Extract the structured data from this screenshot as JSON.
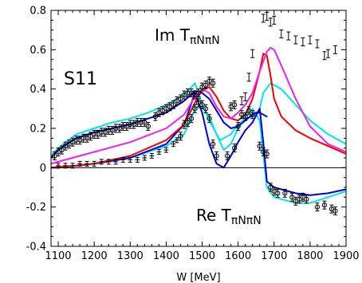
{
  "chart_data": {
    "type": "line",
    "title": "",
    "xlabel": "W [MeV]",
    "ylabel": "",
    "xlim": [
      1080,
      1900
    ],
    "ylim": [
      -0.4,
      0.8
    ],
    "grid": false,
    "xticks": [
      1100,
      1200,
      1300,
      1400,
      1500,
      1600,
      1700,
      1800,
      1900
    ],
    "yticks": [
      -0.4,
      -0.2,
      0,
      0.2,
      0.4,
      0.6,
      0.8
    ],
    "annotations": {
      "partial_wave": "S11",
      "im_label": {
        "main": "Im T",
        "sub": "πNπN"
      },
      "re_label": {
        "main": "Re T",
        "sub": "πNπN"
      }
    },
    "series": [
      {
        "color": "#00e5e5",
        "part": "im",
        "points": [
          [
            1080,
            0.06
          ],
          [
            1100,
            0.1
          ],
          [
            1150,
            0.17
          ],
          [
            1200,
            0.2
          ],
          [
            1250,
            0.23
          ],
          [
            1300,
            0.25
          ],
          [
            1350,
            0.28
          ],
          [
            1400,
            0.32
          ],
          [
            1450,
            0.37
          ],
          [
            1480,
            0.43
          ],
          [
            1490,
            0.38
          ],
          [
            1500,
            0.32
          ],
          [
            1520,
            0.24
          ],
          [
            1540,
            0.17
          ],
          [
            1550,
            0.14
          ],
          [
            1560,
            0.15
          ],
          [
            1580,
            0.17
          ],
          [
            1600,
            0.22
          ],
          [
            1620,
            0.25
          ],
          [
            1640,
            0.26
          ],
          [
            1650,
            0.27
          ],
          [
            1660,
            0.3
          ],
          [
            1670,
            0.38
          ],
          [
            1690,
            0.43
          ],
          [
            1720,
            0.4
          ],
          [
            1760,
            0.32
          ],
          [
            1800,
            0.24
          ],
          [
            1850,
            0.17
          ],
          [
            1900,
            0.12
          ]
        ]
      },
      {
        "color": "#00e5e5",
        "part": "re",
        "points": [
          [
            1080,
            0.0
          ],
          [
            1100,
            0.0
          ],
          [
            1200,
            0.02
          ],
          [
            1300,
            0.05
          ],
          [
            1400,
            0.11
          ],
          [
            1450,
            0.17
          ],
          [
            1480,
            0.3
          ],
          [
            1500,
            0.31
          ],
          [
            1520,
            0.26
          ],
          [
            1540,
            0.17
          ],
          [
            1560,
            0.09
          ],
          [
            1580,
            0.12
          ],
          [
            1600,
            0.2
          ],
          [
            1620,
            0.26
          ],
          [
            1640,
            0.3
          ],
          [
            1660,
            0.24
          ],
          [
            1670,
            0.07
          ],
          [
            1680,
            -0.1
          ],
          [
            1700,
            -0.15
          ],
          [
            1720,
            -0.16
          ],
          [
            1760,
            -0.18
          ],
          [
            1780,
            -0.18
          ],
          [
            1800,
            -0.18
          ],
          [
            1850,
            -0.15
          ],
          [
            1900,
            -0.12
          ]
        ]
      },
      {
        "color": "#0000cc",
        "part": "im",
        "points": [
          [
            1080,
            0.05
          ],
          [
            1100,
            0.09
          ],
          [
            1150,
            0.15
          ],
          [
            1200,
            0.18
          ],
          [
            1250,
            0.2
          ],
          [
            1300,
            0.22
          ],
          [
            1350,
            0.25
          ],
          [
            1400,
            0.28
          ],
          [
            1450,
            0.34
          ],
          [
            1480,
            0.39
          ],
          [
            1500,
            0.38
          ],
          [
            1520,
            0.35
          ],
          [
            1540,
            0.29
          ],
          [
            1560,
            0.23
          ],
          [
            1580,
            0.2
          ],
          [
            1600,
            0.21
          ],
          [
            1620,
            0.24
          ],
          [
            1640,
            0.27
          ],
          [
            1650,
            0.28
          ],
          [
            1660,
            0.28
          ],
          [
            1680,
            0.26
          ]
        ]
      },
      {
        "color": "#0000cc",
        "part": "re",
        "points": [
          [
            1080,
            0.0
          ],
          [
            1100,
            0.0
          ],
          [
            1200,
            0.02
          ],
          [
            1300,
            0.05
          ],
          [
            1400,
            0.12
          ],
          [
            1450,
            0.22
          ],
          [
            1480,
            0.38
          ],
          [
            1500,
            0.28
          ],
          [
            1520,
            0.12
          ],
          [
            1540,
            0.02
          ],
          [
            1560,
            0.0
          ],
          [
            1580,
            0.06
          ],
          [
            1600,
            0.13
          ],
          [
            1620,
            0.19
          ],
          [
            1640,
            0.23
          ],
          [
            1660,
            0.3
          ],
          [
            1670,
            0.13
          ],
          [
            1680,
            -0.07
          ],
          [
            1700,
            -0.1
          ],
          [
            1720,
            -0.11
          ],
          [
            1760,
            -0.13
          ],
          [
            1800,
            -0.14
          ],
          [
            1850,
            -0.13
          ],
          [
            1900,
            -0.11
          ]
        ]
      },
      {
        "color": "#ee0000",
        "part": "im",
        "points": [
          [
            1080,
            0.0
          ],
          [
            1150,
            0.01
          ],
          [
            1200,
            0.02
          ],
          [
            1300,
            0.06
          ],
          [
            1400,
            0.14
          ],
          [
            1450,
            0.22
          ],
          [
            1480,
            0.33
          ],
          [
            1500,
            0.4
          ],
          [
            1520,
            0.41
          ],
          [
            1540,
            0.36
          ],
          [
            1560,
            0.29
          ],
          [
            1580,
            0.25
          ],
          [
            1600,
            0.24
          ],
          [
            1620,
            0.27
          ],
          [
            1640,
            0.35
          ],
          [
            1660,
            0.49
          ],
          [
            1670,
            0.58
          ],
          [
            1680,
            0.57
          ],
          [
            1690,
            0.47
          ],
          [
            1700,
            0.35
          ],
          [
            1720,
            0.26
          ],
          [
            1760,
            0.19
          ],
          [
            1800,
            0.15
          ],
          [
            1850,
            0.11
          ],
          [
            1900,
            0.07
          ]
        ]
      },
      {
        "color": "#ee22ee",
        "part": "im",
        "points": [
          [
            1080,
            0.02
          ],
          [
            1100,
            0.03
          ],
          [
            1200,
            0.08
          ],
          [
            1300,
            0.13
          ],
          [
            1400,
            0.2
          ],
          [
            1450,
            0.27
          ],
          [
            1480,
            0.36
          ],
          [
            1500,
            0.4
          ],
          [
            1520,
            0.38
          ],
          [
            1540,
            0.31
          ],
          [
            1560,
            0.26
          ],
          [
            1580,
            0.25
          ],
          [
            1600,
            0.28
          ],
          [
            1620,
            0.32
          ],
          [
            1640,
            0.38
          ],
          [
            1660,
            0.49
          ],
          [
            1680,
            0.59
          ],
          [
            1690,
            0.61
          ],
          [
            1700,
            0.6
          ],
          [
            1720,
            0.52
          ],
          [
            1760,
            0.35
          ],
          [
            1800,
            0.21
          ],
          [
            1850,
            0.12
          ],
          [
            1900,
            0.08
          ]
        ]
      }
    ],
    "data_im": [
      [
        1090,
        0.06
      ],
      [
        1100,
        0.08
      ],
      [
        1110,
        0.09
      ],
      [
        1120,
        0.11
      ],
      [
        1130,
        0.12
      ],
      [
        1140,
        0.13
      ],
      [
        1150,
        0.14
      ],
      [
        1160,
        0.14
      ],
      [
        1170,
        0.15
      ],
      [
        1180,
        0.15
      ],
      [
        1190,
        0.16
      ],
      [
        1200,
        0.17
      ],
      [
        1210,
        0.17
      ],
      [
        1220,
        0.18
      ],
      [
        1230,
        0.18
      ],
      [
        1240,
        0.19
      ],
      [
        1250,
        0.19
      ],
      [
        1260,
        0.2
      ],
      [
        1270,
        0.2
      ],
      [
        1280,
        0.21
      ],
      [
        1290,
        0.21
      ],
      [
        1300,
        0.22
      ],
      [
        1310,
        0.22
      ],
      [
        1320,
        0.23
      ],
      [
        1330,
        0.23
      ],
      [
        1340,
        0.23
      ],
      [
        1350,
        0.21
      ],
      [
        1370,
        0.26
      ],
      [
        1380,
        0.28
      ],
      [
        1390,
        0.29
      ],
      [
        1400,
        0.3
      ],
      [
        1410,
        0.31
      ],
      [
        1420,
        0.32
      ],
      [
        1430,
        0.34
      ],
      [
        1440,
        0.35
      ],
      [
        1450,
        0.37
      ],
      [
        1460,
        0.38
      ],
      [
        1470,
        0.38
      ],
      [
        1480,
        0.37
      ],
      [
        1490,
        0.38
      ],
      [
        1500,
        0.41
      ],
      [
        1510,
        0.42
      ],
      [
        1520,
        0.44
      ],
      [
        1530,
        0.43
      ],
      [
        1580,
        0.31
      ],
      [
        1590,
        0.32
      ],
      [
        1610,
        0.34
      ],
      [
        1620,
        0.36
      ],
      [
        1630,
        0.46
      ],
      [
        1640,
        0.58
      ],
      [
        1670,
        0.76
      ],
      [
        1680,
        0.77
      ],
      [
        1690,
        0.74
      ],
      [
        1700,
        0.75
      ],
      [
        1720,
        0.68
      ],
      [
        1740,
        0.67
      ],
      [
        1760,
        0.65
      ],
      [
        1780,
        0.64
      ],
      [
        1800,
        0.65
      ],
      [
        1820,
        0.63
      ],
      [
        1840,
        0.57
      ],
      [
        1850,
        0.58
      ],
      [
        1870,
        0.6
      ]
    ],
    "data_re": [
      [
        1100,
        0.01
      ],
      [
        1120,
        0.01
      ],
      [
        1140,
        0.01
      ],
      [
        1160,
        0.02
      ],
      [
        1180,
        0.02
      ],
      [
        1200,
        0.02
      ],
      [
        1220,
        0.03
      ],
      [
        1240,
        0.03
      ],
      [
        1260,
        0.03
      ],
      [
        1280,
        0.04
      ],
      [
        1300,
        0.04
      ],
      [
        1320,
        0.04
      ],
      [
        1340,
        0.05
      ],
      [
        1360,
        0.06
      ],
      [
        1380,
        0.08
      ],
      [
        1400,
        0.09
      ],
      [
        1420,
        0.12
      ],
      [
        1430,
        0.14
      ],
      [
        1440,
        0.16
      ],
      [
        1450,
        0.22
      ],
      [
        1460,
        0.23
      ],
      [
        1470,
        0.25
      ],
      [
        1480,
        0.3
      ],
      [
        1490,
        0.33
      ],
      [
        1500,
        0.32
      ],
      [
        1510,
        0.3
      ],
      [
        1520,
        0.25
      ],
      [
        1530,
        0.12
      ],
      [
        1540,
        0.06
      ],
      [
        1570,
        0.06
      ],
      [
        1590,
        0.1
      ],
      [
        1600,
        0.21
      ],
      [
        1610,
        0.27
      ],
      [
        1620,
        0.26
      ],
      [
        1630,
        0.29
      ],
      [
        1640,
        0.27
      ],
      [
        1660,
        0.11
      ],
      [
        1670,
        0.08
      ],
      [
        1680,
        0.07
      ],
      [
        1690,
        -0.1
      ],
      [
        1700,
        -0.12
      ],
      [
        1710,
        -0.13
      ],
      [
        1730,
        -0.13
      ],
      [
        1750,
        -0.15
      ],
      [
        1760,
        -0.17
      ],
      [
        1770,
        -0.16
      ],
      [
        1780,
        -0.15
      ],
      [
        1790,
        -0.16
      ],
      [
        1820,
        -0.2
      ],
      [
        1840,
        -0.19
      ],
      [
        1860,
        -0.21
      ],
      [
        1870,
        -0.22
      ]
    ]
  }
}
